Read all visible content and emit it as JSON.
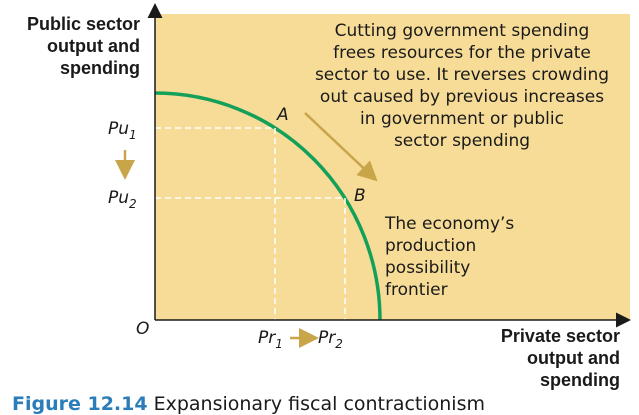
{
  "axes": {
    "y_label": [
      "Public sector",
      "output and",
      "spending"
    ],
    "x_label": [
      "Private sector",
      "output and",
      "spending"
    ],
    "origin": "O"
  },
  "ticks": {
    "pu1": {
      "base": "Pu",
      "sub": "1"
    },
    "pu2": {
      "base": "Pu",
      "sub": "2"
    },
    "pr1": {
      "base": "Pr",
      "sub": "1"
    },
    "pr2": {
      "base": "Pr",
      "sub": "2"
    }
  },
  "points": {
    "a": "A",
    "b": "B"
  },
  "annotation": [
    "Cutting government spending",
    "frees resources for the private",
    "sector to use. It reverses crowding",
    "out caused by previous increases",
    "in government or public",
    "sector spending"
  ],
  "curve_label": [
    "The economy’s",
    "production",
    "possibility",
    "frontier"
  ],
  "caption": {
    "number": "Figure 12.14",
    "title": "Expansionary fiscal contractionism"
  }
}
